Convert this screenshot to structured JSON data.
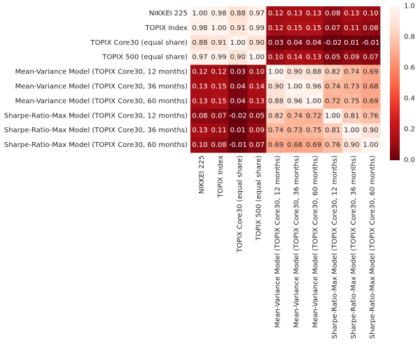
{
  "chart_data": {
    "type": "heatmap",
    "title": "",
    "xlabel": "",
    "ylabel": "",
    "row_labels": [
      "NIKKEI 225",
      "TOPIX Index",
      "TOPIX Core30 (equal share)",
      "TOPIX 500 (equal share)",
      "Mean-Variance Model (TOPIX Core30, 12 months)",
      "Mean-Variance Model (TOPIX Core30, 36 months)",
      "Mean-Variance Model (TOPIX Core30, 60 months)",
      "Sharpe-Ratio-Max Model (TOPIX Core30, 12 months)",
      "Sharpe-Ratio-Max Model (TOPIX Core30, 36 months)",
      "Sharpe-Ratio-Max Model (TOPIX Core30, 60 months)"
    ],
    "col_labels": [
      "NIKKEI 225",
      "TOPIX Index",
      "TOPIX Core30 (equal share)",
      "TOPIX 500 (equal share)",
      "Mean-Variance Model (TOPIX Core30, 12 months)",
      "Mean-Variance Model (TOPIX Core30, 36 months)",
      "Mean-Variance Model (TOPIX Core30, 60 months)",
      "Sharpe-Ratio-Max Model (TOPIX Core30, 12 months)",
      "Sharpe-Ratio-Max Model (TOPIX Core30, 36 months)",
      "Sharpe-Ratio-Max Model (TOPIX Core30, 60 months)"
    ],
    "values": [
      [
        1.0,
        0.98,
        0.88,
        0.97,
        0.12,
        0.13,
        0.13,
        0.08,
        0.13,
        0.1
      ],
      [
        0.98,
        1.0,
        0.91,
        0.99,
        0.12,
        0.15,
        0.15,
        0.07,
        0.11,
        0.08
      ],
      [
        0.88,
        0.91,
        1.0,
        0.9,
        0.03,
        0.04,
        0.04,
        -0.02,
        0.01,
        -0.01
      ],
      [
        0.97,
        0.99,
        0.9,
        1.0,
        0.1,
        0.14,
        0.13,
        0.05,
        0.09,
        0.07
      ],
      [
        0.12,
        0.12,
        0.03,
        0.1,
        1.0,
        0.9,
        0.88,
        0.82,
        0.74,
        0.69
      ],
      [
        0.13,
        0.15,
        0.04,
        0.14,
        0.9,
        1.0,
        0.96,
        0.74,
        0.73,
        0.68
      ],
      [
        0.13,
        0.15,
        0.04,
        0.13,
        0.88,
        0.96,
        1.0,
        0.72,
        0.75,
        0.69
      ],
      [
        0.08,
        0.07,
        -0.02,
        0.05,
        0.82,
        0.74,
        0.72,
        1.0,
        0.81,
        0.76
      ],
      [
        0.13,
        0.11,
        0.01,
        0.09,
        0.74,
        0.73,
        0.75,
        0.81,
        1.0,
        0.9
      ],
      [
        0.1,
        0.08,
        -0.01,
        0.07,
        0.69,
        0.68,
        0.69,
        0.76,
        0.9,
        1.0
      ]
    ],
    "value_format": "2dp",
    "colormap": "Reds_r",
    "vmin": 0.0,
    "vmax": 1.0,
    "colorbar_ticks": [
      "0.0",
      "0.2",
      "0.4",
      "0.6",
      "0.8",
      "1.0"
    ],
    "colorbar_tick_values": [
      0.0,
      0.2,
      0.4,
      0.6,
      0.8,
      1.0
    ],
    "grid": false,
    "legend": "colorbar right"
  },
  "colors": {
    "low": "#67000d",
    "mid": "#ef3b2c",
    "high": "#fff5f0",
    "text_dark": "#262626",
    "text_light": "#ffffff"
  }
}
